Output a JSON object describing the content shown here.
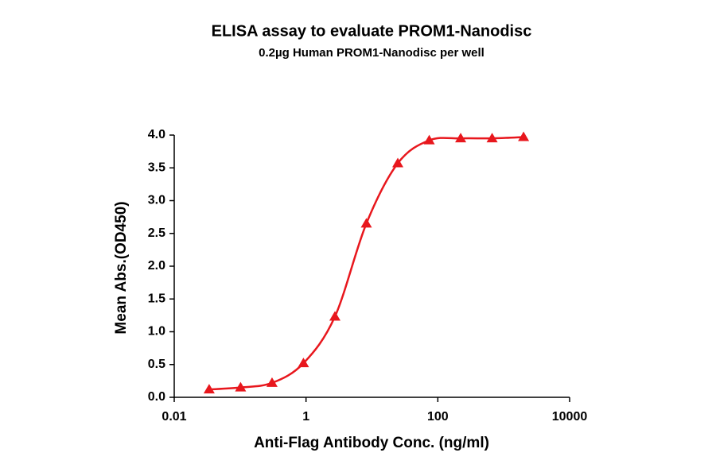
{
  "chart_data": {
    "type": "scatter-line",
    "title": "ELISA assay to evaluate PROM1-Nanodisc",
    "subtitle": "0.2µg Human PROM1-Nanodisc per well",
    "x_label": "Anti-Flag Antibody Conc. (ng/ml)",
    "y_label": "Mean Abs.(OD450)",
    "x": [
      0.0339,
      0.1016,
      0.305,
      0.914,
      2.743,
      8.23,
      24.69,
      74.07,
      222.2,
      666.7,
      2000
    ],
    "values": [
      0.12,
      0.15,
      0.22,
      0.52,
      1.23,
      2.65,
      3.57,
      3.92,
      3.95,
      3.95,
      3.97
    ],
    "color": "#e8171d",
    "xlim": [
      0.01,
      10000
    ],
    "xticks": [
      0.01,
      1,
      100,
      10000
    ],
    "xscale": "log",
    "ylim": [
      0,
      4
    ],
    "yticks": [
      {
        "value": 0,
        "label": "0.0"
      },
      0.5,
      {
        "value": 1,
        "label": "1.0"
      },
      1.5,
      {
        "value": 2,
        "label": "2.0"
      },
      2.5,
      {
        "value": 3,
        "label": "3.0"
      },
      3.5,
      {
        "value": 4,
        "label": "4.0"
      }
    ]
  }
}
